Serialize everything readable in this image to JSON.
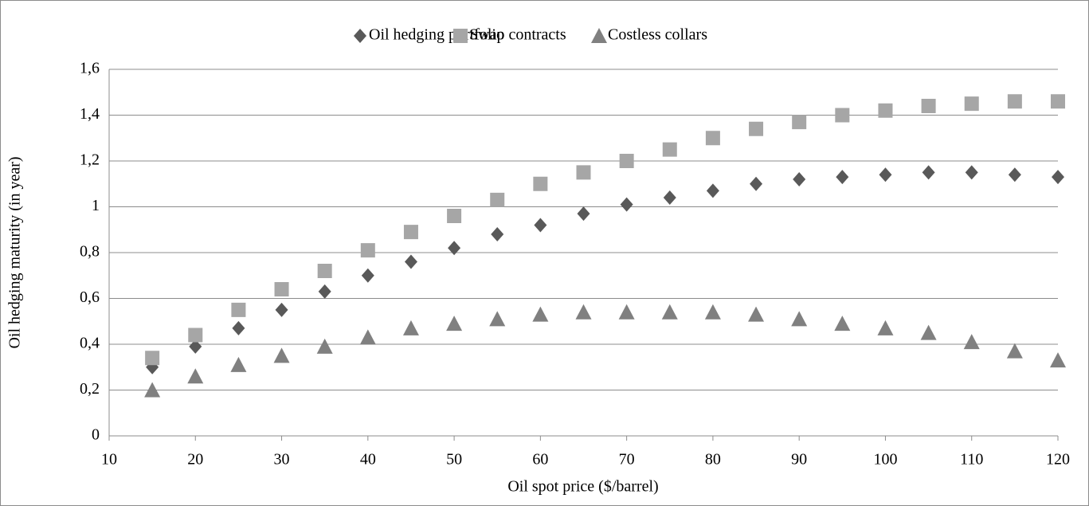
{
  "chart_data": {
    "type": "scatter",
    "x_label": "Oil spot price ($/barrel)",
    "y_label": "Oil hedging maturity (in year)",
    "x": [
      15,
      20,
      25,
      30,
      35,
      40,
      45,
      50,
      55,
      60,
      65,
      70,
      75,
      80,
      85,
      90,
      95,
      100,
      105,
      110,
      115,
      120
    ],
    "series": [
      {
        "name": "Oil hedging portfolio",
        "color": "#595959",
        "marker": "diamond",
        "values": [
          0.3,
          0.39,
          0.47,
          0.55,
          0.63,
          0.7,
          0.76,
          0.82,
          0.88,
          0.92,
          0.97,
          1.01,
          1.04,
          1.07,
          1.1,
          1.12,
          1.13,
          1.14,
          1.15,
          1.15,
          1.14,
          1.13
        ]
      },
      {
        "name": "Swap contracts",
        "color": "#a6a6a6",
        "marker": "square",
        "values": [
          0.34,
          0.44,
          0.55,
          0.64,
          0.72,
          0.81,
          0.89,
          0.96,
          1.03,
          1.1,
          1.15,
          1.2,
          1.25,
          1.3,
          1.34,
          1.37,
          1.4,
          1.42,
          1.44,
          1.45,
          1.46,
          1.46
        ]
      },
      {
        "name": "Costless collars",
        "color": "#808080",
        "marker": "triangle",
        "values": [
          0.2,
          0.26,
          0.31,
          0.35,
          0.39,
          0.43,
          0.47,
          0.49,
          0.51,
          0.53,
          0.54,
          0.54,
          0.54,
          0.54,
          0.53,
          0.51,
          0.49,
          0.47,
          0.45,
          0.41,
          0.37,
          0.33
        ]
      }
    ],
    "xlim": [
      10,
      120
    ],
    "xticks": [
      10,
      20,
      30,
      40,
      50,
      60,
      70,
      80,
      90,
      100,
      110,
      120
    ],
    "ylim": [
      0,
      1.6
    ],
    "yticks": [
      0,
      {
        "value": 0.2,
        "label": "0,2"
      },
      {
        "value": 0.4,
        "label": "0,4"
      },
      {
        "value": 0.6,
        "label": "0,6"
      },
      {
        "value": 0.8,
        "label": "0,8"
      },
      1,
      {
        "value": 1.2,
        "label": "1,2"
      },
      {
        "value": 1.4,
        "label": "1,4"
      },
      {
        "value": 1.6,
        "label": "1,6"
      }
    ],
    "grid": true,
    "legend": "top"
  }
}
